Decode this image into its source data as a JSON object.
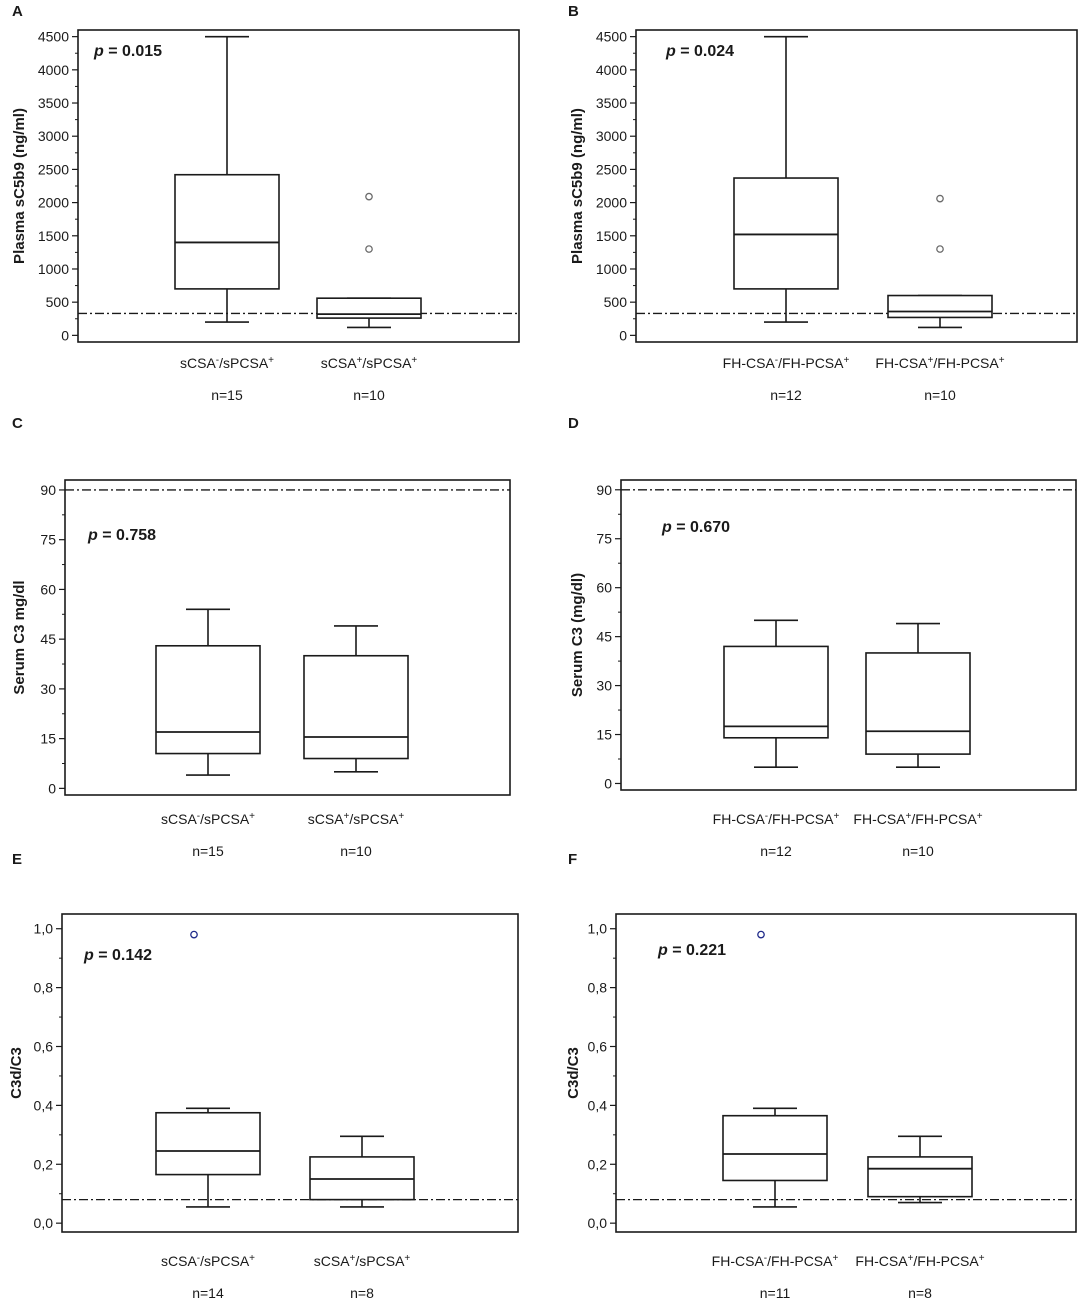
{
  "chart_data": [
    {
      "type": "box",
      "panel": "A",
      "ylabel": "Plasma sC5b9 (ng/ml)",
      "ylim": [
        -100,
        4600
      ],
      "yticks": [
        0,
        500,
        1000,
        1500,
        2000,
        2500,
        3000,
        3500,
        4000,
        4500
      ],
      "tick_labels": [
        "0",
        "500",
        "1000",
        "1500",
        "2000",
        "2500",
        "3000",
        "3500",
        "4000",
        "4500"
      ],
      "p_prefix": "p",
      "p_value": "= 0.015",
      "reference_line": 330,
      "groups": [
        {
          "label_parts": [
            [
              "sCSA",
              0
            ],
            [
              "-",
              1
            ],
            [
              "/sPCSA",
              0
            ],
            [
              "+",
              1
            ]
          ],
          "n": "n=15",
          "whisker_low": 200,
          "q1": 700,
          "median": 1400,
          "q3": 2420,
          "whisker_high": 4500,
          "outliers": []
        },
        {
          "label_parts": [
            [
              "sCSA",
              0
            ],
            [
              "+",
              1
            ],
            [
              "/sPCSA",
              0
            ],
            [
              "+",
              1
            ]
          ],
          "n": "n=10",
          "whisker_low": 120,
          "q1": 260,
          "median": 320,
          "q3": 560,
          "whisker_high": 560,
          "outliers": [
            1300,
            2090
          ]
        }
      ]
    },
    {
      "type": "box",
      "panel": "B",
      "ylabel": "Plasma sC5b9 (ng/ml)",
      "ylim": [
        -100,
        4600
      ],
      "yticks": [
        0,
        500,
        1000,
        1500,
        2000,
        2500,
        3000,
        3500,
        4000,
        4500
      ],
      "tick_labels": [
        "0",
        "500",
        "1000",
        "1500",
        "2000",
        "2500",
        "3000",
        "3500",
        "4000",
        "4500"
      ],
      "p_prefix": "p",
      "p_value": "= 0.024",
      "reference_line": 330,
      "groups": [
        {
          "label_parts": [
            [
              "FH-CSA",
              0
            ],
            [
              "-",
              1
            ],
            [
              "/FH-PCSA",
              0
            ],
            [
              "+",
              1
            ]
          ],
          "n": "n=12",
          "whisker_low": 200,
          "q1": 700,
          "median": 1520,
          "q3": 2370,
          "whisker_high": 4500,
          "outliers": []
        },
        {
          "label_parts": [
            [
              "FH-CSA",
              0
            ],
            [
              "+",
              1
            ],
            [
              "/FH-PCSA",
              0
            ],
            [
              "+",
              1
            ]
          ],
          "n": "n=10",
          "whisker_low": 120,
          "q1": 270,
          "median": 360,
          "q3": 600,
          "whisker_high": 600,
          "outliers": [
            1300,
            2060
          ]
        }
      ]
    },
    {
      "type": "box",
      "panel": "C",
      "ylabel": "Serum  C3 mg/dl",
      "ylim": [
        -2,
        93
      ],
      "yticks": [
        0,
        15,
        30,
        45,
        60,
        75,
        90
      ],
      "tick_labels": [
        "0",
        "15",
        "30",
        "45",
        "60",
        "75",
        "90"
      ],
      "p_prefix": "p",
      "p_value": "= 0.758",
      "reference_line": 90,
      "groups": [
        {
          "label_parts": [
            [
              "sCSA",
              0
            ],
            [
              "-",
              1
            ],
            [
              "/sPCSA",
              0
            ],
            [
              "+",
              1
            ]
          ],
          "n": "n=15",
          "whisker_low": 4,
          "q1": 10.5,
          "median": 17,
          "q3": 43,
          "whisker_high": 54,
          "outliers": []
        },
        {
          "label_parts": [
            [
              "sCSA",
              0
            ],
            [
              "+",
              1
            ],
            [
              "/sPCSA",
              0
            ],
            [
              "+",
              1
            ]
          ],
          "n": "n=10",
          "whisker_low": 5,
          "q1": 9,
          "median": 15.5,
          "q3": 40,
          "whisker_high": 49,
          "outliers": []
        }
      ]
    },
    {
      "type": "box",
      "panel": "D",
      "ylabel": "Serum C3 (mg/dl)",
      "ylim": [
        -2,
        93
      ],
      "yticks": [
        0,
        15,
        30,
        45,
        60,
        75,
        90
      ],
      "tick_labels": [
        "0",
        "15",
        "30",
        "45",
        "60",
        "75",
        "90"
      ],
      "p_prefix": "p",
      "p_value": "= 0.670",
      "reference_line": 90,
      "groups": [
        {
          "label_parts": [
            [
              "FH-CSA",
              0
            ],
            [
              "-",
              1
            ],
            [
              "/FH-PCSA",
              0
            ],
            [
              "+",
              1
            ]
          ],
          "n": "n=12",
          "whisker_low": 5,
          "q1": 14,
          "median": 17.5,
          "q3": 42,
          "whisker_high": 50,
          "outliers": []
        },
        {
          "label_parts": [
            [
              "FH-CSA",
              0
            ],
            [
              "+",
              1
            ],
            [
              "/FH-PCSA",
              0
            ],
            [
              "+",
              1
            ]
          ],
          "n": "n=10",
          "whisker_low": 5,
          "q1": 9,
          "median": 16,
          "q3": 40,
          "whisker_high": 49,
          "outliers": []
        }
      ]
    },
    {
      "type": "box",
      "panel": "E",
      "ylabel": "C3d/C3",
      "ylim": [
        -0.03,
        1.05
      ],
      "yticks": [
        0,
        0.2,
        0.4,
        0.6,
        0.8,
        1.0
      ],
      "tick_labels": [
        "0,0",
        "0,2",
        "0,4",
        "0,6",
        "0,8",
        "1,0"
      ],
      "p_prefix": "p",
      "p_value": "= 0.142",
      "reference_line": 0.08,
      "outlier_color": "#1f2a8a",
      "groups": [
        {
          "label_parts": [
            [
              "sCSA",
              0
            ],
            [
              "-",
              1
            ],
            [
              "/sPCSA",
              0
            ],
            [
              "+",
              1
            ]
          ],
          "n": "n=14",
          "whisker_low": 0.055,
          "q1": 0.165,
          "median": 0.245,
          "q3": 0.375,
          "whisker_high": 0.39,
          "outliers": [
            0.98
          ]
        },
        {
          "label_parts": [
            [
              "sCSA",
              0
            ],
            [
              "+",
              1
            ],
            [
              "/sPCSA",
              0
            ],
            [
              "+",
              1
            ]
          ],
          "n": "n=8",
          "whisker_low": 0.055,
          "q1": 0.08,
          "median": 0.15,
          "q3": 0.225,
          "whisker_high": 0.295,
          "outliers": []
        }
      ]
    },
    {
      "type": "box",
      "panel": "F",
      "ylabel": "C3d/C3",
      "ylim": [
        -0.03,
        1.05
      ],
      "yticks": [
        0,
        0.2,
        0.4,
        0.6,
        0.8,
        1.0
      ],
      "tick_labels": [
        "0,0",
        "0,2",
        "0,4",
        "0,6",
        "0,8",
        "1,0"
      ],
      "p_prefix": "p",
      "p_value": "= 0.221",
      "reference_line": 0.08,
      "outlier_color": "#1f2a8a",
      "groups": [
        {
          "label_parts": [
            [
              "FH-CSA",
              0
            ],
            [
              "-",
              1
            ],
            [
              "/FH-PCSA",
              0
            ],
            [
              "+",
              1
            ]
          ],
          "n": "n=11",
          "whisker_low": 0.055,
          "q1": 0.145,
          "median": 0.235,
          "q3": 0.365,
          "whisker_high": 0.39,
          "outliers": [
            0.98
          ]
        },
        {
          "label_parts": [
            [
              "FH-CSA",
              0
            ],
            [
              "+",
              1
            ],
            [
              "/FH-PCSA",
              0
            ],
            [
              "+",
              1
            ]
          ],
          "n": "n=8",
          "whisker_low": 0.07,
          "q1": 0.09,
          "median": 0.185,
          "q3": 0.225,
          "whisker_high": 0.295,
          "outliers": []
        }
      ]
    }
  ]
}
